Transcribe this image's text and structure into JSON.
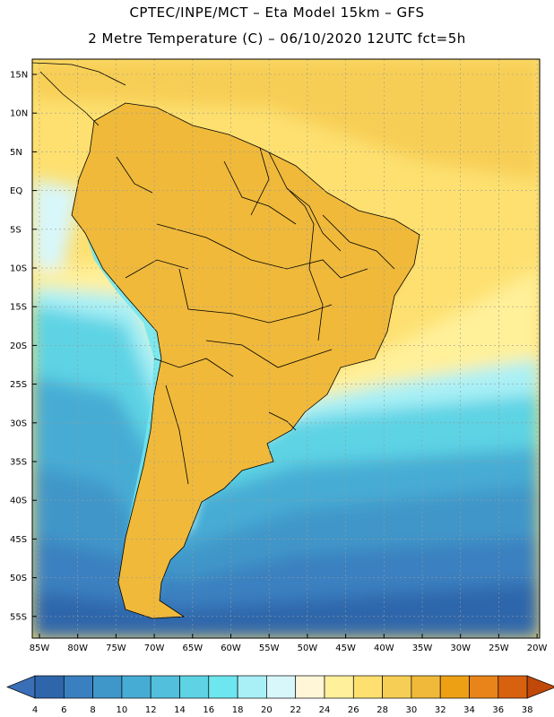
{
  "title": {
    "line1": "CPTEC/INPE/MCT –  Eta Model 15km – GFS",
    "line2": "2 Metre Temperature (C) – 06/10/2020 12UTC fct=5h"
  },
  "axes": {
    "lat_labels": [
      "15N",
      "10N",
      "5N",
      "EQ",
      "5S",
      "10S",
      "15S",
      "20S",
      "25S",
      "30S",
      "35S",
      "40S",
      "45S",
      "50S",
      "55S"
    ],
    "lon_labels": [
      "85W",
      "80W",
      "75W",
      "70W",
      "65W",
      "60W",
      "55W",
      "50W",
      "45W",
      "40W",
      "35W",
      "30W",
      "25W",
      "20W"
    ]
  },
  "colorbar": {
    "ticks": [
      "4",
      "6",
      "8",
      "10",
      "12",
      "14",
      "16",
      "18",
      "20",
      "22",
      "24",
      "26",
      "28",
      "30",
      "32",
      "34",
      "36",
      "38"
    ],
    "below_color": "#3a6fb8",
    "above_color": "#c04808",
    "colors": [
      "#2f66ab",
      "#3a80c0",
      "#3f96c9",
      "#47acd4",
      "#52c0dc",
      "#5dd3e4",
      "#6ee6ef",
      "#a9f0f6",
      "#d8f7fb",
      "#fff6d8",
      "#fff09a",
      "#fde070",
      "#f7ce55",
      "#f0b93a",
      "#eea014",
      "#e8841a",
      "#d86110",
      "#c44406",
      "#c04808"
    ]
  },
  "map": {
    "ocean_south": "#2f66ab",
    "ocean_mid": "#47acd4",
    "ocean_warm": "#fde070",
    "land_hot": "#b8440a",
    "land_warm": "#e8841a",
    "andes": "#6ee6ef",
    "border_color": "#000000"
  }
}
